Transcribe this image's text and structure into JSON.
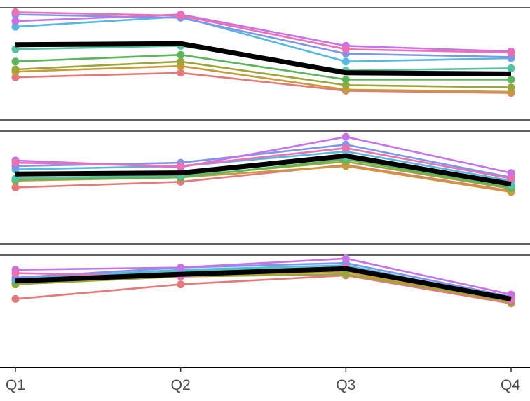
{
  "chart_data": {
    "type": "line",
    "categories": [
      "Q1",
      "Q2",
      "Q3",
      "Q4"
    ],
    "panels": [
      {
        "ylim": [
          0,
          1
        ],
        "series": [
          {
            "color": "#E5797A",
            "values": [
              0.38,
              0.42,
              0.26,
              0.24
            ]
          },
          {
            "color": "#C79A3A",
            "values": [
              0.43,
              0.48,
              0.27,
              0.25
            ]
          },
          {
            "color": "#9AA53A",
            "values": [
              0.45,
              0.52,
              0.31,
              0.29
            ]
          },
          {
            "color": "#5BB55A",
            "values": [
              0.52,
              0.58,
              0.36,
              0.36
            ]
          },
          {
            "color": "#52C4A2",
            "values": [
              0.63,
              0.66,
              0.44,
              0.46
            ]
          },
          {
            "color": "#55B9DE",
            "values": [
              0.83,
              0.92,
              0.52,
              0.55
            ]
          },
          {
            "color": "#7C97EA",
            "values": [
              0.94,
              0.91,
              0.59,
              0.56
            ]
          },
          {
            "color": "#C772E8",
            "values": [
              0.88,
              0.94,
              0.66,
              0.61
            ]
          },
          {
            "color": "#EE6FB4",
            "values": [
              0.96,
              0.93,
              0.63,
              0.6
            ]
          },
          {
            "color": "#000000",
            "emphasis": true,
            "values": [
              0.67,
              0.68,
              0.42,
              0.41
            ]
          }
        ]
      },
      {
        "ylim": [
          0,
          1
        ],
        "series": [
          {
            "color": "#E5797A",
            "values": [
              0.5,
              0.55,
              0.7,
              0.47
            ]
          },
          {
            "color": "#C79A3A",
            "values": [
              0.56,
              0.59,
              0.69,
              0.46
            ]
          },
          {
            "color": "#9AA53A",
            "values": [
              0.57,
              0.6,
              0.73,
              0.49
            ]
          },
          {
            "color": "#5BB55A",
            "values": [
              0.57,
              0.59,
              0.75,
              0.5
            ]
          },
          {
            "color": "#52C4A2",
            "values": [
              0.58,
              0.61,
              0.77,
              0.52
            ]
          },
          {
            "color": "#55B9DE",
            "values": [
              0.66,
              0.69,
              0.82,
              0.56
            ]
          },
          {
            "color": "#7C97EA",
            "values": [
              0.69,
              0.72,
              0.88,
              0.59
            ]
          },
          {
            "color": "#C772E8",
            "values": [
              0.74,
              0.68,
              0.95,
              0.63
            ]
          },
          {
            "color": "#EE6FB4",
            "values": [
              0.72,
              0.69,
              0.85,
              0.58
            ]
          },
          {
            "color": "#000000",
            "emphasis": true,
            "values": [
              0.62,
              0.63,
              0.78,
              0.53
            ]
          }
        ]
      },
      {
        "ylim": [
          0,
          1
        ],
        "series": [
          {
            "color": "#E5797A",
            "values": [
              0.61,
              0.74,
              0.82,
              0.57
            ]
          },
          {
            "color": "#C79A3A",
            "values": [
              0.74,
              0.82,
              0.85,
              0.58
            ]
          },
          {
            "color": "#9AA53A",
            "values": [
              0.74,
              0.81,
              0.83,
              0.59
            ]
          },
          {
            "color": "#5BB55A",
            "values": [
              0.77,
              0.84,
              0.88,
              0.59
            ]
          },
          {
            "color": "#52C4A2",
            "values": [
              0.78,
              0.86,
              0.89,
              0.6
            ]
          },
          {
            "color": "#55B9DE",
            "values": [
              0.79,
              0.87,
              0.91,
              0.61
            ]
          },
          {
            "color": "#7C97EA",
            "values": [
              0.8,
              0.89,
              0.93,
              0.63
            ]
          },
          {
            "color": "#C772E8",
            "values": [
              0.87,
              0.89,
              0.97,
              0.65
            ]
          },
          {
            "color": "#EE6FB4",
            "values": [
              0.84,
              0.81,
              0.89,
              0.6
            ]
          },
          {
            "color": "#000000",
            "emphasis": true,
            "values": [
              0.77,
              0.83,
              0.88,
              0.61
            ]
          }
        ]
      }
    ],
    "grid": false,
    "legend": "none"
  }
}
